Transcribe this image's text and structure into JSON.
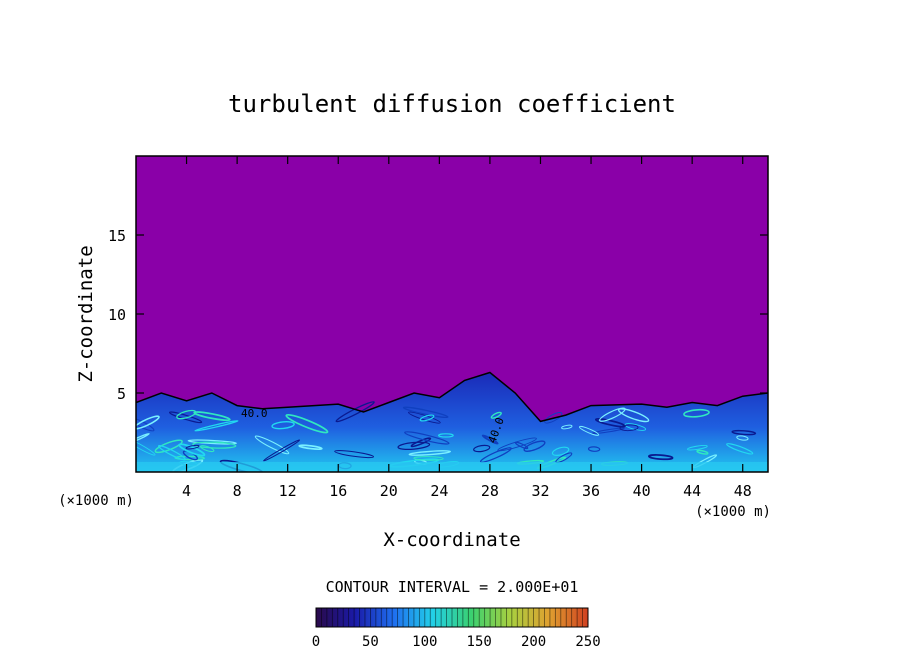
{
  "chart_data": {
    "type": "heatmap",
    "title": "turbulent diffusion coefficient",
    "xlabel": "X-coordinate",
    "ylabel": "Z-coordinate",
    "x_unit": "(×1000 m)",
    "x_unit_right": "(×1000 m)",
    "xlim": [
      0,
      50
    ],
    "ylim": [
      0,
      20
    ],
    "x_ticks": [
      4,
      8,
      12,
      16,
      20,
      24,
      28,
      32,
      36,
      40,
      44,
      48
    ],
    "y_ticks": [
      5,
      10,
      15
    ],
    "contour_interval_text": "CONTOUR INTERVAL = 2.000E+01",
    "contour_labels": [
      "40.0",
      "40.0"
    ],
    "colorbar": {
      "min": 0,
      "max": 250,
      "ticks": [
        0,
        50,
        100,
        150,
        200,
        250
      ],
      "colors": [
        "#2a0a4a",
        "#1a1aa8",
        "#1f6ff0",
        "#22d0e8",
        "#3ad070",
        "#a8d040",
        "#e0a030",
        "#d04020"
      ]
    },
    "background_value_color": "#8a00a8",
    "boundary_layer_top": [
      [
        0,
        4.4
      ],
      [
        2,
        5.0
      ],
      [
        4,
        4.5
      ],
      [
        6,
        5.0
      ],
      [
        8,
        4.2
      ],
      [
        10,
        4.0
      ],
      [
        12,
        4.1
      ],
      [
        16,
        4.3
      ],
      [
        18,
        3.8
      ],
      [
        20,
        4.4
      ],
      [
        22,
        5.0
      ],
      [
        24,
        4.7
      ],
      [
        26,
        5.8
      ],
      [
        28,
        6.3
      ],
      [
        30,
        5.0
      ],
      [
        32,
        3.2
      ],
      [
        34,
        3.6
      ],
      [
        36,
        4.2
      ],
      [
        40,
        4.3
      ],
      [
        42,
        4.1
      ],
      [
        44,
        4.4
      ],
      [
        46,
        4.2
      ],
      [
        48,
        4.8
      ],
      [
        50,
        5.0
      ]
    ]
  }
}
